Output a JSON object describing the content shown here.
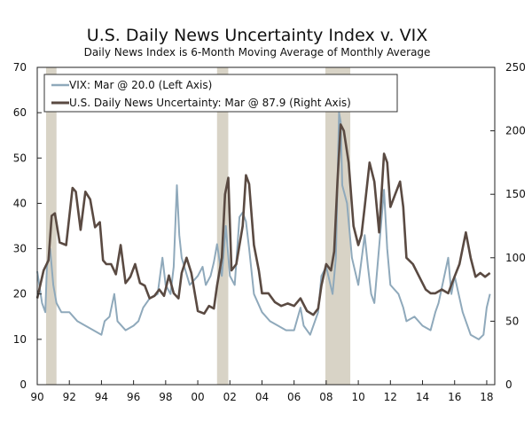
{
  "chart_data": {
    "type": "line",
    "title": "U.S. Daily News Uncertainty Index v. VIX",
    "subtitle": "Daily News Index is 6-Month Moving Average of Monthly Average",
    "xlim": [
      1990,
      2018.5
    ],
    "xticks": [
      1990,
      1992,
      1994,
      1996,
      1998,
      2000,
      2002,
      2004,
      2006,
      2008,
      2010,
      2012,
      2014,
      2016,
      2018
    ],
    "xtick_labels": [
      "90",
      "92",
      "94",
      "96",
      "98",
      "00",
      "02",
      "04",
      "06",
      "08",
      "10",
      "12",
      "14",
      "16",
      "18"
    ],
    "left_axis": {
      "ylim": [
        0,
        70
      ],
      "ticks": [
        0,
        10,
        20,
        30,
        40,
        50,
        60,
        70
      ]
    },
    "right_axis": {
      "ylim": [
        0,
        250
      ],
      "ticks": [
        0,
        50,
        100,
        150,
        200,
        250
      ]
    },
    "recessions": [
      [
        1990.55,
        1991.2
      ],
      [
        2001.2,
        2001.9
      ],
      [
        2007.95,
        2009.5
      ]
    ],
    "legend": {
      "position": "top-left",
      "entries": [
        {
          "label": "VIX: Mar @ 20.0 (Left Axis)",
          "series": "vix"
        },
        {
          "label": "U.S. Daily News Uncertainty: Mar @ 87.9 (Right Axis)",
          "series": "news"
        }
      ]
    },
    "colors": {
      "vix": "#8fa9bb",
      "news": "#5a4a42",
      "recession": "#d8d3c6"
    },
    "series": [
      {
        "name": "VIX",
        "key": "vix",
        "axis": "left",
        "points": [
          [
            1990.0,
            25
          ],
          [
            1990.3,
            18
          ],
          [
            1990.5,
            16
          ],
          [
            1990.6,
            26
          ],
          [
            1990.8,
            30
          ],
          [
            1991.0,
            22
          ],
          [
            1991.2,
            18
          ],
          [
            1991.5,
            16
          ],
          [
            1992.0,
            16
          ],
          [
            1992.5,
            14
          ],
          [
            1993.0,
            13
          ],
          [
            1993.5,
            12
          ],
          [
            1994.0,
            11
          ],
          [
            1994.2,
            14
          ],
          [
            1994.5,
            15
          ],
          [
            1994.8,
            20
          ],
          [
            1995.0,
            14
          ],
          [
            1995.5,
            12
          ],
          [
            1996.0,
            13
          ],
          [
            1996.3,
            14
          ],
          [
            1996.6,
            17
          ],
          [
            1996.8,
            18
          ],
          [
            1997.0,
            19
          ],
          [
            1997.5,
            20
          ],
          [
            1997.8,
            28
          ],
          [
            1998.0,
            22
          ],
          [
            1998.3,
            20
          ],
          [
            1998.5,
            26
          ],
          [
            1998.7,
            44
          ],
          [
            1998.85,
            33
          ],
          [
            1999.0,
            28
          ],
          [
            1999.5,
            22
          ],
          [
            2000.0,
            24
          ],
          [
            2000.3,
            26
          ],
          [
            2000.5,
            22
          ],
          [
            2000.8,
            24
          ],
          [
            2001.0,
            27
          ],
          [
            2001.2,
            31
          ],
          [
            2001.5,
            24
          ],
          [
            2001.75,
            35
          ],
          [
            2002.0,
            24
          ],
          [
            2002.3,
            22
          ],
          [
            2002.6,
            37
          ],
          [
            2002.8,
            38
          ],
          [
            2003.0,
            36
          ],
          [
            2003.2,
            30
          ],
          [
            2003.5,
            20
          ],
          [
            2004.0,
            16
          ],
          [
            2004.5,
            14
          ],
          [
            2005.0,
            13
          ],
          [
            2005.5,
            12
          ],
          [
            2006.0,
            12
          ],
          [
            2006.4,
            17
          ],
          [
            2006.6,
            13
          ],
          [
            2007.0,
            11
          ],
          [
            2007.5,
            16
          ],
          [
            2007.7,
            24
          ],
          [
            2008.0,
            26
          ],
          [
            2008.4,
            20
          ],
          [
            2008.6,
            28
          ],
          [
            2008.8,
            60
          ],
          [
            2008.9,
            58
          ],
          [
            2009.0,
            44
          ],
          [
            2009.3,
            40
          ],
          [
            2009.6,
            28
          ],
          [
            2010.0,
            22
          ],
          [
            2010.4,
            33
          ],
          [
            2010.6,
            26
          ],
          [
            2010.8,
            20
          ],
          [
            2011.0,
            18
          ],
          [
            2011.6,
            43
          ],
          [
            2011.8,
            30
          ],
          [
            2012.0,
            22
          ],
          [
            2012.5,
            20
          ],
          [
            2012.8,
            17
          ],
          [
            2013.0,
            14
          ],
          [
            2013.5,
            15
          ],
          [
            2014.0,
            13
          ],
          [
            2014.5,
            12
          ],
          [
            2014.8,
            16
          ],
          [
            2015.0,
            18
          ],
          [
            2015.6,
            28
          ],
          [
            2015.8,
            20
          ],
          [
            2016.0,
            24
          ],
          [
            2016.5,
            16
          ],
          [
            2017.0,
            11
          ],
          [
            2017.5,
            10
          ],
          [
            2017.8,
            11
          ],
          [
            2018.0,
            17
          ],
          [
            2018.2,
            20
          ]
        ]
      },
      {
        "name": "U.S. Daily News Uncertainty",
        "key": "news",
        "axis": "right",
        "points": [
          [
            1990.0,
            68
          ],
          [
            1990.4,
            90
          ],
          [
            1990.7,
            98
          ],
          [
            1990.9,
            133
          ],
          [
            1991.1,
            135
          ],
          [
            1991.4,
            112
          ],
          [
            1991.8,
            110
          ],
          [
            1992.2,
            155
          ],
          [
            1992.4,
            152
          ],
          [
            1992.7,
            122
          ],
          [
            1993.0,
            152
          ],
          [
            1993.3,
            146
          ],
          [
            1993.6,
            124
          ],
          [
            1993.9,
            128
          ],
          [
            1994.1,
            98
          ],
          [
            1994.3,
            95
          ],
          [
            1994.6,
            95
          ],
          [
            1994.9,
            87
          ],
          [
            1995.2,
            110
          ],
          [
            1995.5,
            80
          ],
          [
            1995.8,
            85
          ],
          [
            1996.1,
            95
          ],
          [
            1996.4,
            80
          ],
          [
            1996.7,
            78
          ],
          [
            1997.0,
            68
          ],
          [
            1997.3,
            70
          ],
          [
            1997.6,
            75
          ],
          [
            1997.9,
            70
          ],
          [
            1998.2,
            86
          ],
          [
            1998.5,
            72
          ],
          [
            1998.8,
            68
          ],
          [
            1999.0,
            88
          ],
          [
            1999.3,
            100
          ],
          [
            1999.6,
            88
          ],
          [
            2000.0,
            58
          ],
          [
            2000.4,
            56
          ],
          [
            2000.7,
            62
          ],
          [
            2001.0,
            60
          ],
          [
            2001.2,
            78
          ],
          [
            2001.5,
            100
          ],
          [
            2001.7,
            150
          ],
          [
            2001.9,
            163
          ],
          [
            2002.1,
            90
          ],
          [
            2002.4,
            95
          ],
          [
            2002.8,
            125
          ],
          [
            2003.0,
            165
          ],
          [
            2003.2,
            158
          ],
          [
            2003.5,
            110
          ],
          [
            2003.8,
            90
          ],
          [
            2004.0,
            72
          ],
          [
            2004.4,
            72
          ],
          [
            2004.8,
            65
          ],
          [
            2005.2,
            62
          ],
          [
            2005.6,
            64
          ],
          [
            2006.0,
            62
          ],
          [
            2006.4,
            68
          ],
          [
            2006.8,
            58
          ],
          [
            2007.2,
            55
          ],
          [
            2007.5,
            60
          ],
          [
            2007.7,
            78
          ],
          [
            2008.0,
            95
          ],
          [
            2008.3,
            90
          ],
          [
            2008.5,
            105
          ],
          [
            2008.7,
            160
          ],
          [
            2008.9,
            205
          ],
          [
            2009.1,
            200
          ],
          [
            2009.4,
            175
          ],
          [
            2009.7,
            125
          ],
          [
            2010.0,
            110
          ],
          [
            2010.2,
            118
          ],
          [
            2010.4,
            140
          ],
          [
            2010.7,
            175
          ],
          [
            2011.0,
            160
          ],
          [
            2011.3,
            120
          ],
          [
            2011.6,
            182
          ],
          [
            2011.8,
            175
          ],
          [
            2012.0,
            140
          ],
          [
            2012.3,
            150
          ],
          [
            2012.6,
            160
          ],
          [
            2012.8,
            140
          ],
          [
            2013.0,
            100
          ],
          [
            2013.4,
            95
          ],
          [
            2013.8,
            85
          ],
          [
            2014.2,
            75
          ],
          [
            2014.5,
            72
          ],
          [
            2014.8,
            72
          ],
          [
            2015.2,
            75
          ],
          [
            2015.6,
            72
          ],
          [
            2015.9,
            82
          ],
          [
            2016.3,
            95
          ],
          [
            2016.7,
            120
          ],
          [
            2017.0,
            100
          ],
          [
            2017.3,
            85
          ],
          [
            2017.6,
            88
          ],
          [
            2017.9,
            85
          ],
          [
            2018.2,
            88
          ]
        ]
      }
    ]
  }
}
